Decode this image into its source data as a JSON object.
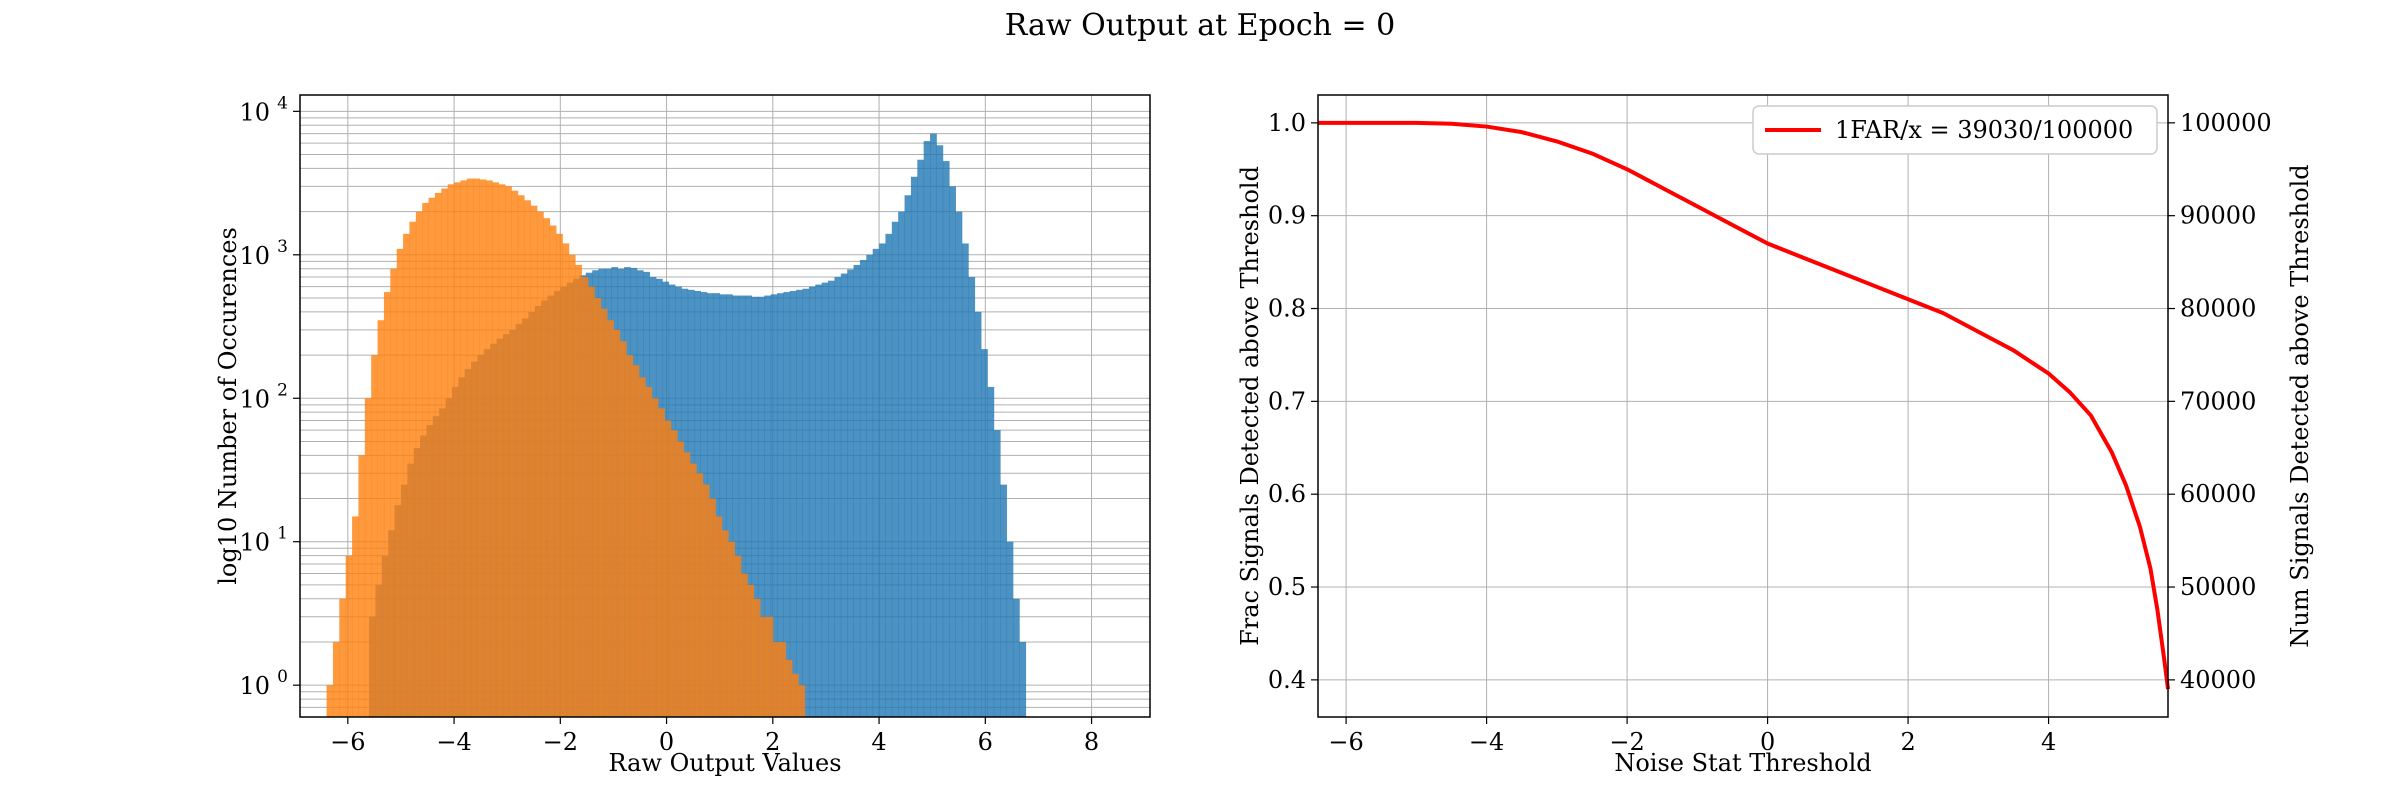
{
  "figure": {
    "title": "Raw Output at Epoch = 0"
  },
  "chart_data": [
    {
      "type": "bar",
      "subtype": "histogram",
      "xlabel": "Raw Output Values",
      "ylabel": "log10 Number of Occurences",
      "yscale": "log",
      "xlim": [
        -6.9,
        9.1
      ],
      "ylim": [
        0.6,
        13000
      ],
      "x_ticks": [
        -6,
        -4,
        -2,
        0,
        2,
        4,
        6,
        8
      ],
      "y_tick_exponents": [
        0,
        1,
        2,
        3,
        4
      ],
      "grid": true,
      "bin_width": 0.12,
      "series": [
        {
          "color": "#1f77b4",
          "bin_start": -5.6,
          "values": [
            3,
            5,
            8,
            12,
            18,
            25,
            35,
            45,
            55,
            65,
            75,
            85,
            100,
            120,
            140,
            160,
            180,
            200,
            220,
            240,
            260,
            280,
            300,
            330,
            360,
            400,
            440,
            480,
            520,
            560,
            600,
            640,
            680,
            720,
            750,
            780,
            800,
            800,
            820,
            800,
            820,
            810,
            780,
            760,
            700,
            680,
            650,
            620,
            600,
            580,
            570,
            560,
            550,
            540,
            540,
            530,
            530,
            520,
            520,
            520,
            510,
            510,
            520,
            530,
            540,
            550,
            560,
            570,
            580,
            600,
            620,
            640,
            660,
            700,
            740,
            790,
            850,
            920,
            1000,
            1100,
            1200,
            1400,
            1700,
            2000,
            2600,
            3500,
            4600,
            6200,
            7000,
            5800,
            4500,
            3000,
            2000,
            1200,
            700,
            400,
            220,
            120,
            60,
            25,
            10,
            4,
            2
          ]
        },
        {
          "color": "#ff7f0e",
          "bin_start": -6.4,
          "values": [
            1,
            2,
            4,
            8,
            15,
            40,
            100,
            200,
            350,
            550,
            800,
            1100,
            1400,
            1700,
            2000,
            2300,
            2500,
            2700,
            2900,
            3100,
            3200,
            3300,
            3400,
            3400,
            3350,
            3300,
            3200,
            3100,
            3000,
            2800,
            2600,
            2400,
            2200,
            2000,
            1800,
            1600,
            1400,
            1200,
            1000,
            850,
            700,
            600,
            500,
            420,
            350,
            300,
            250,
            200,
            170,
            140,
            120,
            100,
            85,
            70,
            60,
            50,
            42,
            35,
            30,
            25,
            20,
            15,
            12,
            10,
            8,
            6,
            5,
            4,
            3,
            3,
            2,
            2,
            1.5,
            1.2,
            1
          ]
        }
      ]
    },
    {
      "type": "line",
      "xlabel": "Noise Stat Threshold",
      "ylabel": "Frac Signals Detected above Threshold",
      "ylabel_right": "Num Signals Detected above Threshold",
      "xlim": [
        -6.4,
        5.7
      ],
      "ylim": [
        0.36,
        1.03
      ],
      "ylim_right": [
        36000,
        103000
      ],
      "x_ticks": [
        -6,
        -4,
        -2,
        0,
        2,
        4
      ],
      "y_ticks": [
        0.4,
        0.5,
        0.6,
        0.7,
        0.8,
        0.9,
        1.0
      ],
      "y_ticks_right": [
        40000,
        50000,
        60000,
        70000,
        80000,
        90000,
        100000
      ],
      "grid": true,
      "legend_position": "top-right",
      "series": [
        {
          "name": "1FAR/x = 39030/100000",
          "color": "#ff0000",
          "x": [
            -6.4,
            -6,
            -5.5,
            -5,
            -4.5,
            -4,
            -3.5,
            -3,
            -2.5,
            -2,
            -1.5,
            -1,
            -0.5,
            0,
            0.5,
            1,
            1.5,
            2,
            2.5,
            3,
            3.5,
            4,
            4.3,
            4.6,
            4.9,
            5.1,
            5.3,
            5.45,
            5.55,
            5.65,
            5.7
          ],
          "y": [
            1.0,
            1.0,
            1.0,
            1.0,
            0.999,
            0.996,
            0.99,
            0.98,
            0.967,
            0.95,
            0.93,
            0.91,
            0.89,
            0.87,
            0.855,
            0.84,
            0.825,
            0.81,
            0.795,
            0.775,
            0.755,
            0.73,
            0.71,
            0.685,
            0.645,
            0.61,
            0.565,
            0.52,
            0.475,
            0.42,
            0.39
          ]
        }
      ]
    }
  ]
}
